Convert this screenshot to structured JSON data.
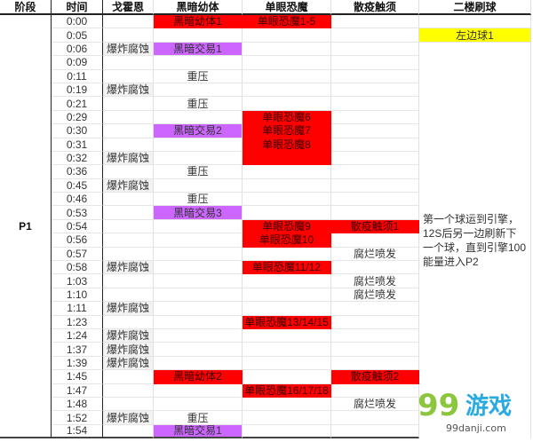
{
  "headers": [
    "阶段",
    "时间",
    "戈霍恩",
    "黑暗幼体",
    "单眼恐魔",
    "散疫触须",
    "二楼刷球"
  ],
  "stage": "P1",
  "colors": {
    "red": "#ff0000",
    "purple": "#cc66ff",
    "yellow": "#ffff00"
  },
  "ball_note": "第一个球运到引擎，12S后另一边刷新下一个球，直到引擎100能量进入P2",
  "watermark": {
    "logo": "99游戏",
    "url": "99danji.com"
  },
  "rows": [
    {
      "time": "0:00",
      "gohorn": "",
      "brood": "黑暗幼体1",
      "brood_color": "red",
      "eye": "单眼恐魔1-5",
      "eye_color": "red",
      "tentacle": "",
      "ball": ""
    },
    {
      "time": "0:05",
      "gohorn": "",
      "brood": "",
      "eye": "",
      "tentacle": "",
      "ball": "左边球1",
      "ball_color": "yellow"
    },
    {
      "time": "0:06",
      "gohorn": "爆炸腐蚀",
      "brood": "黑暗交易1",
      "brood_color": "purple",
      "eye": "",
      "tentacle": ""
    },
    {
      "time": "0:09",
      "gohorn": "",
      "brood": "",
      "eye": "",
      "tentacle": ""
    },
    {
      "time": "0:11",
      "gohorn": "",
      "brood": "重压",
      "eye": "",
      "tentacle": ""
    },
    {
      "time": "0:19",
      "gohorn": "爆炸腐蚀",
      "brood": "",
      "eye": "",
      "tentacle": ""
    },
    {
      "time": "0:21",
      "gohorn": "",
      "brood": "重压",
      "eye": "",
      "tentacle": ""
    },
    {
      "time": "0:29",
      "gohorn": "",
      "brood": "",
      "eye": "单眼恐魔6",
      "eye_color": "red",
      "tentacle": ""
    },
    {
      "time": "0:30",
      "gohorn": "",
      "brood": "黑暗交易2",
      "brood_color": "purple",
      "eye": "单眼恐魔7",
      "eye_color": "red",
      "tentacle": ""
    },
    {
      "time": "0:31",
      "gohorn": "",
      "brood": "",
      "eye": "单眼恐魔8",
      "eye_color": "red",
      "tentacle": ""
    },
    {
      "time": "0:32",
      "gohorn": "爆炸腐蚀",
      "brood": "",
      "eye": "",
      "eye_color": "red",
      "tentacle": ""
    },
    {
      "time": "0:36",
      "gohorn": "",
      "brood": "重压",
      "eye": "",
      "tentacle": ""
    },
    {
      "time": "0:45",
      "gohorn": "爆炸腐蚀",
      "brood": "",
      "eye": "",
      "tentacle": ""
    },
    {
      "time": "0:46",
      "gohorn": "",
      "brood": "重压",
      "eye": "",
      "tentacle": ""
    },
    {
      "time": "0:53",
      "gohorn": "",
      "brood": "黑暗交易3",
      "brood_color": "purple",
      "eye": "",
      "tentacle": ""
    },
    {
      "time": "0:54",
      "gohorn": "",
      "brood": "",
      "eye": "单眼恐魔9",
      "eye_color": "red",
      "tentacle": "散疫触须1",
      "tentacle_color": "red"
    },
    {
      "time": "0:56",
      "gohorn": "",
      "brood": "",
      "eye": "单眼恐魔10",
      "eye_color": "red",
      "tentacle": ""
    },
    {
      "time": "0:57",
      "gohorn": "",
      "brood": "",
      "eye": "",
      "tentacle": "腐烂喷发"
    },
    {
      "time": "0:58",
      "gohorn": "爆炸腐蚀",
      "brood": "",
      "eye": "单眼恐魔11/12",
      "eye_color": "red",
      "tentacle": ""
    },
    {
      "time": "1:03",
      "gohorn": "",
      "brood": "",
      "eye": "",
      "tentacle": "腐烂喷发"
    },
    {
      "time": "1:10",
      "gohorn": "",
      "brood": "",
      "eye": "",
      "tentacle": "腐烂喷发"
    },
    {
      "time": "1:11",
      "gohorn": "爆炸腐蚀",
      "brood": "",
      "eye": "",
      "tentacle": ""
    },
    {
      "time": "1:23",
      "gohorn": "",
      "brood": "",
      "eye": "单眼恐魔13/14/15",
      "eye_color": "red",
      "tentacle": ""
    },
    {
      "time": "1:24",
      "gohorn": "爆炸腐蚀",
      "brood": "",
      "eye": "",
      "tentacle": ""
    },
    {
      "time": "1:37",
      "gohorn": "爆炸腐蚀",
      "brood": "",
      "eye": "",
      "tentacle": ""
    },
    {
      "time": "1:39",
      "gohorn": "爆炸腐蚀",
      "brood": "",
      "eye": "",
      "tentacle": ""
    },
    {
      "time": "1:45",
      "gohorn": "",
      "brood": "黑暗幼体2",
      "brood_color": "red",
      "eye": "",
      "tentacle": "散疫触须2",
      "tentacle_color": "red"
    },
    {
      "time": "1:47",
      "gohorn": "",
      "brood": "",
      "eye": "单眼恐魔16/17/18",
      "eye_color": "red",
      "tentacle": ""
    },
    {
      "time": "1:48",
      "gohorn": "",
      "brood": "",
      "eye": "",
      "tentacle": "腐烂喷发"
    },
    {
      "time": "1:52",
      "gohorn": "爆炸腐蚀",
      "brood": "重压",
      "eye": "",
      "tentacle": ""
    },
    {
      "time": "1:54",
      "gohorn": "",
      "brood": "黑暗交易1",
      "brood_color": "purple",
      "eye": "",
      "tentacle": ""
    }
  ]
}
